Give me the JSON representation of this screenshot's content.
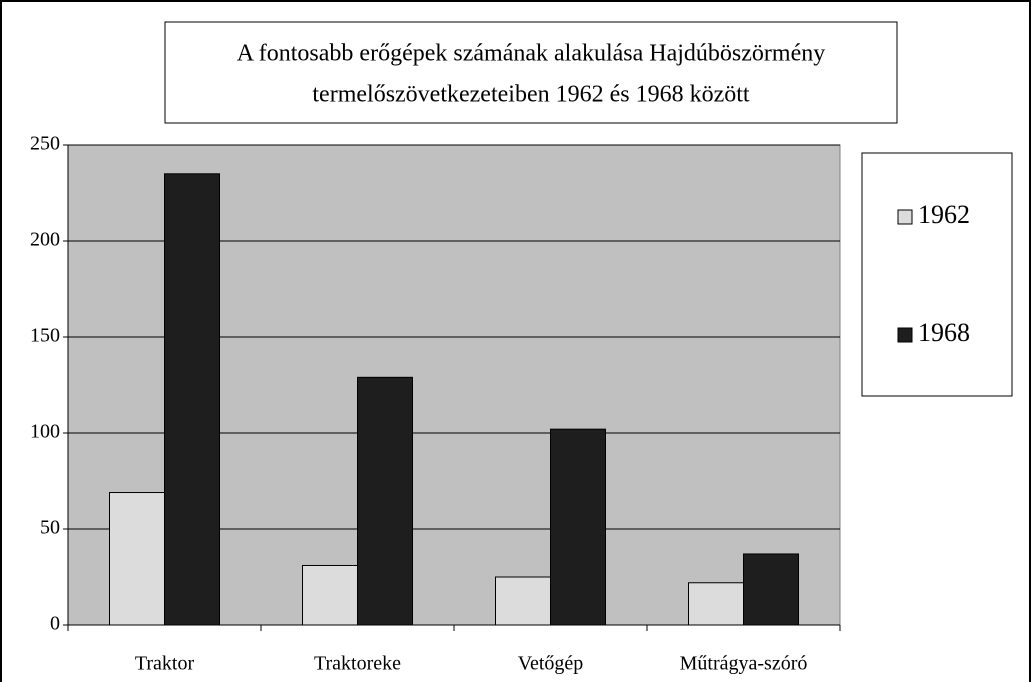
{
  "chart_data": {
    "type": "bar",
    "title": [
      "A fontosabb erőgépek számának alakulása Hajdúböszörmény",
      "termelőszövetkezeteiben 1962 és 1968 között"
    ],
    "categories": [
      "Traktor",
      "Traktoreke",
      "Vetőgép",
      "Műtrágya-szóró"
    ],
    "series": [
      {
        "name": "1962",
        "color": "#dcdcdc",
        "values": [
          69,
          31,
          25,
          22
        ]
      },
      {
        "name": "1968",
        "color": "#1e1e1e",
        "values": [
          235,
          129,
          102,
          37
        ]
      }
    ],
    "ylim": [
      0,
      250
    ],
    "yticks": [
      0,
      50,
      100,
      150,
      200,
      250
    ],
    "grid": true,
    "legend": "right"
  }
}
